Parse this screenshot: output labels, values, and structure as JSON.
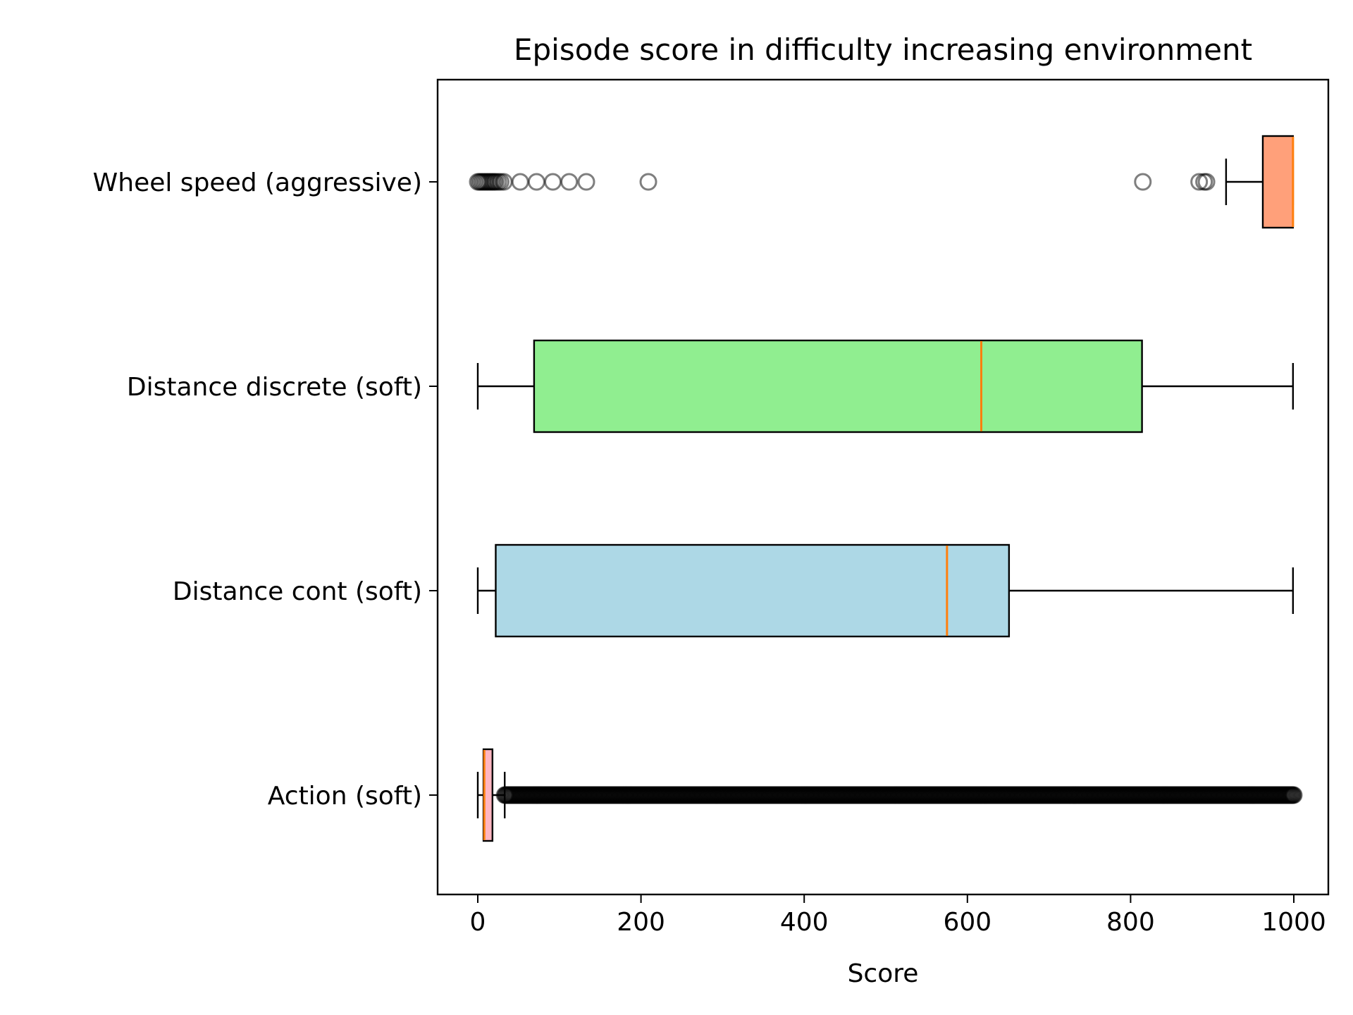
{
  "chart_data": {
    "type": "boxplot",
    "orientation": "horizontal",
    "title": "Episode score in difficulty increasing environment",
    "xlabel": "Score",
    "ylabel": "",
    "xlim": [
      -50,
      1050
    ],
    "xticks": [
      0,
      200,
      400,
      600,
      800,
      1000
    ],
    "xtick_labels": [
      "0",
      "200",
      "400",
      "600",
      "800",
      "1000"
    ],
    "grid": false,
    "series": [
      {
        "name": "Wheel speed (aggressive)",
        "color": "#ffa07a",
        "whisker_low": 917,
        "q1": 962,
        "median": 999,
        "q3": 999,
        "whisker_high": 999,
        "outliers": [
          0,
          2,
          4,
          6,
          8,
          10,
          12,
          14,
          16,
          18,
          20,
          22,
          25,
          28,
          32,
          52,
          72,
          92,
          112,
          133,
          209,
          815,
          884,
          890,
          893
        ]
      },
      {
        "name": "Distance discrete (soft)",
        "color": "#90ee90",
        "whisker_low": 0,
        "q1": 69,
        "median": 617,
        "q3": 814,
        "whisker_high": 999,
        "outliers": []
      },
      {
        "name": "Distance cont (soft)",
        "color": "#add8e6",
        "whisker_low": 0,
        "q1": 22,
        "median": 575,
        "q3": 651,
        "whisker_high": 999,
        "outliers": []
      },
      {
        "name": "Action (soft)",
        "color": "#ffb6c1",
        "whisker_low": 0,
        "q1": 7,
        "median": 8,
        "q3": 18,
        "whisker_high": 33,
        "outliers_range": [
          33,
          1000
        ]
      }
    ]
  }
}
